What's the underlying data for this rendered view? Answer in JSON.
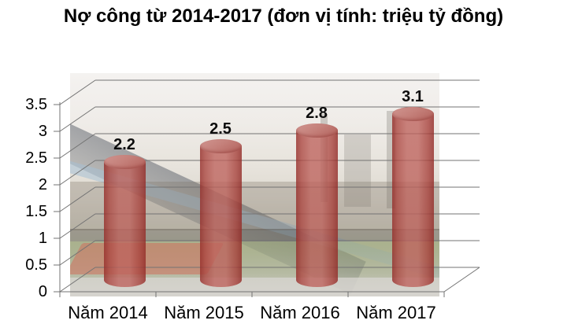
{
  "title": "Nợ công từ 2014-2017 (đơn vị tính: triệu tỷ đồng)",
  "chart_data": {
    "type": "bar",
    "style": "3d-cylinder",
    "title": "Nợ công từ 2014-2017 (đơn vị tính: triệu tỷ đồng)",
    "categories": [
      "Năm 2014",
      "Năm 2015",
      "Năm 2016",
      "Năm 2017"
    ],
    "values": [
      2.2,
      2.5,
      2.8,
      3.1
    ],
    "data_labels": [
      "2.2",
      "2.5",
      "2.8",
      "3.1"
    ],
    "xlabel": "",
    "ylabel": "",
    "ylim": [
      0,
      3.5
    ],
    "ytick_interval": 0.5,
    "ytick_labels": [
      "3.5",
      "3",
      "2.5",
      "2",
      "1.5",
      "1",
      "0.5",
      "0"
    ],
    "grid": "horizontal",
    "legend": false,
    "bar_color": "#b4605b",
    "bar_top_color": "#c5817b",
    "gridline_color": "#737373",
    "label_color": "#000000",
    "background": "faded industrial steel-plant photo watermark"
  }
}
